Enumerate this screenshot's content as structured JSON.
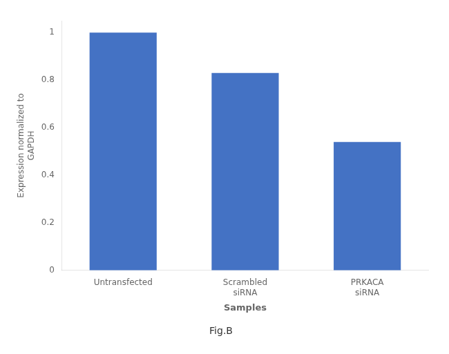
{
  "chart_data": {
    "type": "bar",
    "categories": [
      "Untransfected",
      "Scrambled\nsiRNA",
      "PRKACA\nsiRNA"
    ],
    "values": [
      1.0,
      0.83,
      0.54
    ],
    "color": "#4472C4",
    "ylim": [
      0,
      1.05
    ],
    "yticks": [
      0,
      0.2,
      0.4,
      0.6,
      0.8,
      1.0
    ],
    "y_label": "Expression normalized to\nGAPDH",
    "x_label": "Samples",
    "annotations": [
      "Fig.B"
    ],
    "grid": false
  }
}
